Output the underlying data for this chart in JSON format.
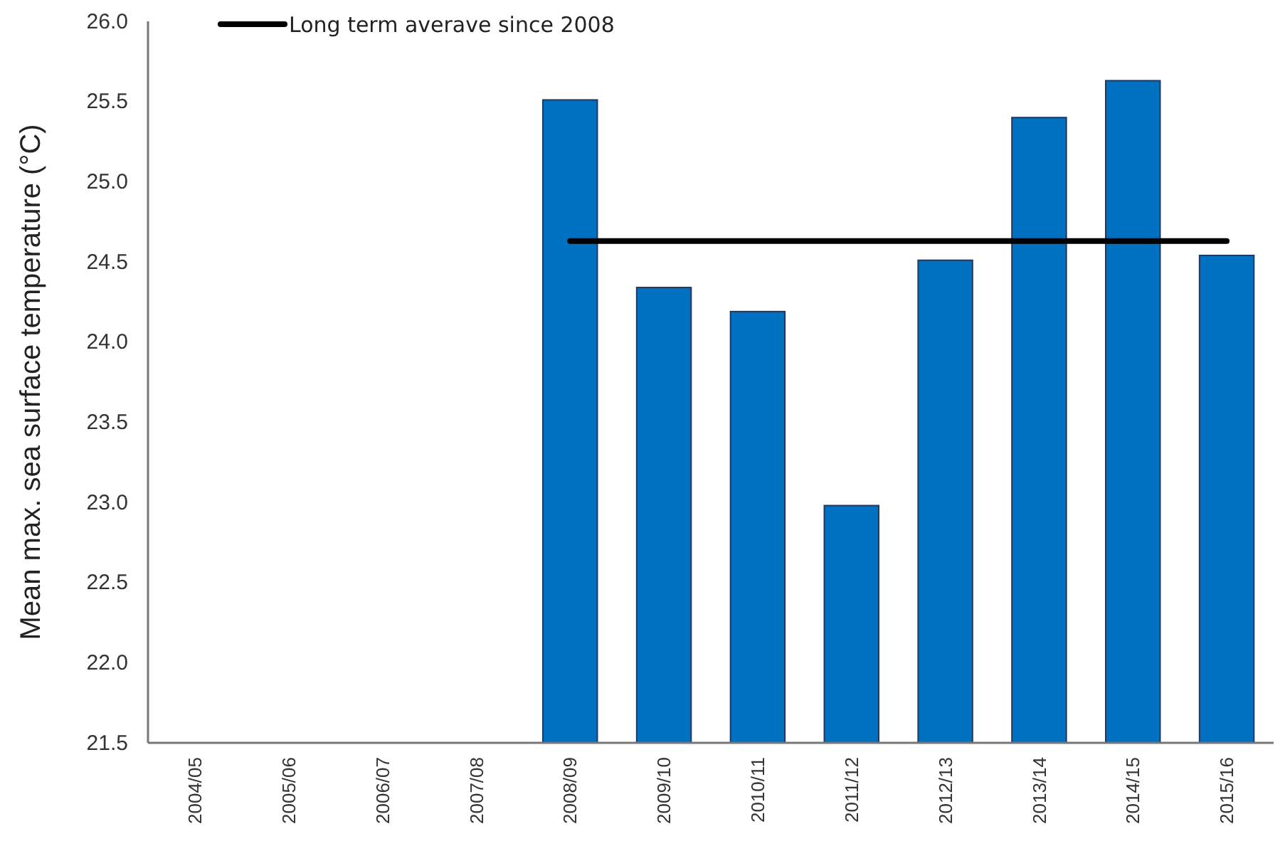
{
  "chart_data": {
    "type": "bar",
    "ylabel": "Mean max. sea surface temperature (°C)",
    "categories": [
      "2004/05",
      "2005/06",
      "2006/07",
      "2007/08",
      "2008/09",
      "2009/10",
      "2010/11",
      "2011/12",
      "2012/13",
      "2013/14",
      "2014/15",
      "2015/16"
    ],
    "series": [
      {
        "color": "#0070c0",
        "values": [
          null,
          null,
          null,
          null,
          25.51,
          24.34,
          24.19,
          22.98,
          24.51,
          25.4,
          25.63,
          24.54
        ]
      },
      {
        "type": "line",
        "name": "Long term averave since 2008",
        "color": "#000000",
        "values": [
          null,
          null,
          null,
          null,
          24.63,
          24.63,
          24.63,
          24.63,
          24.63,
          24.63,
          24.63,
          24.63
        ]
      }
    ],
    "ylim": [
      21.5,
      26.0
    ],
    "yticks": [
      {
        "value": 21.5,
        "label": "21.5"
      },
      {
        "value": 22,
        "label": "22.0"
      },
      {
        "value": 22.5,
        "label": "22.5"
      },
      {
        "value": 23,
        "label": "23.0"
      },
      {
        "value": 23.5,
        "label": "23.5"
      },
      {
        "value": 24,
        "label": "24.0"
      },
      {
        "value": 24.5,
        "label": "24.5"
      },
      {
        "value": 25,
        "label": "25.0"
      },
      {
        "value": 25.5,
        "label": "25.5"
      },
      {
        "value": 26,
        "label": "26.0"
      }
    ],
    "legend": "top left",
    "marker": "none",
    "line_style": "solid"
  }
}
